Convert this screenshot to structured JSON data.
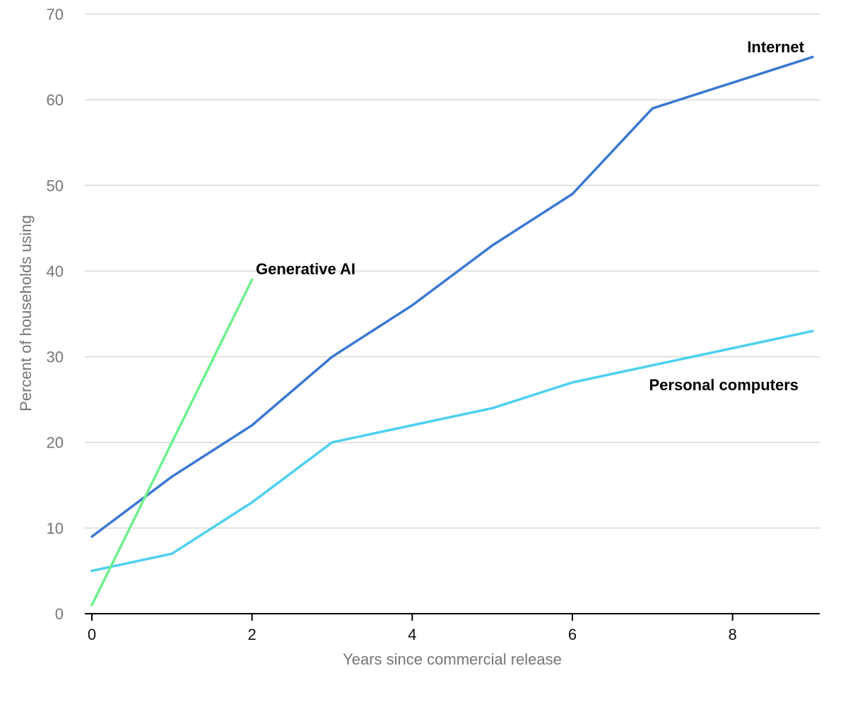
{
  "chart_data": {
    "type": "line",
    "xlabel": "Years since commercial release",
    "ylabel": "Percent of households using",
    "xlim": [
      0,
      9
    ],
    "ylim": [
      0,
      70
    ],
    "xticks": [
      "0",
      "2",
      "4",
      "6",
      "8"
    ],
    "yticks": [
      "0",
      "10",
      "20",
      "30",
      "40",
      "50",
      "60",
      "70"
    ],
    "grid": true,
    "legend": "inline labels",
    "series": [
      {
        "name": "Internet",
        "color": "#3b78d4",
        "x": [
          0,
          1,
          2,
          3,
          4,
          5,
          6,
          7,
          8,
          9
        ],
        "values": [
          9,
          16,
          22,
          30,
          36,
          43,
          49,
          59,
          62,
          65
        ]
      },
      {
        "name": "Personal computers",
        "color": "#4dd0f2",
        "x": [
          0,
          1,
          2,
          3,
          4,
          5,
          6,
          7,
          8,
          9
        ],
        "values": [
          5,
          7,
          13,
          20,
          22,
          24,
          27,
          29,
          31,
          33
        ]
      },
      {
        "name": "Generative AI",
        "color": "#6ef08c",
        "x": [
          0,
          1,
          2
        ],
        "values": [
          1,
          20,
          39
        ]
      }
    ]
  }
}
